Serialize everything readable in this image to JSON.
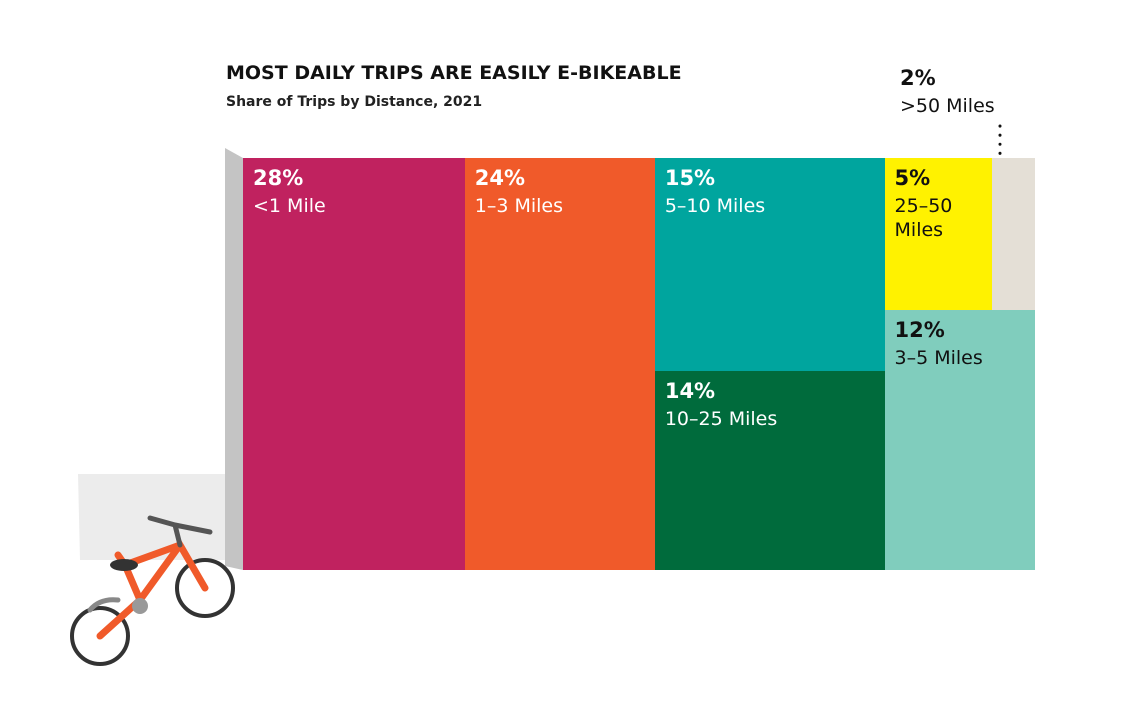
{
  "chart_data": {
    "type": "treemap",
    "title": "MOST DAILY TRIPS ARE EASILY E-BIKEABLE",
    "subtitle": "Share of Trips by Distance, 2021",
    "categories": [
      "<1 Mile",
      "1–3 Miles",
      "5–10 Miles",
      "10–25 Miles",
      "25–50 Miles",
      ">50 Miles",
      "3–5 Miles"
    ],
    "values": [
      28,
      24,
      15,
      14,
      5,
      2,
      12
    ],
    "value_labels": [
      "28%",
      "24%",
      "15%",
      "14%",
      "5%",
      "2%",
      "12%"
    ],
    "colors": [
      "#c0225f",
      "#f05a2a",
      "#00a59e",
      "#006b3c",
      "#fff200",
      "#e4dfd6",
      "#80cdbd"
    ]
  }
}
